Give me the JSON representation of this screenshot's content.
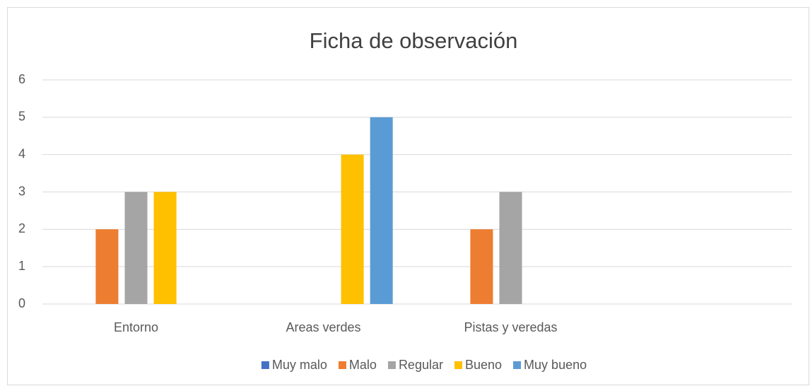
{
  "chart_data": {
    "type": "bar",
    "title": "Ficha de observación",
    "categories": [
      "Entorno",
      "Areas verdes",
      "Pistas y veredas",
      null
    ],
    "series": [
      {
        "name": "Muy malo",
        "color": "#4472c4",
        "values": [
          null,
          null,
          null,
          null
        ]
      },
      {
        "name": "Malo",
        "color": "#ed7d31",
        "values": [
          2,
          null,
          2,
          null
        ]
      },
      {
        "name": "Regular",
        "color": "#a5a5a5",
        "values": [
          3,
          null,
          3,
          null
        ]
      },
      {
        "name": "Bueno",
        "color": "#ffc000",
        "values": [
          3,
          4,
          null,
          null
        ]
      },
      {
        "name": "Muy bueno",
        "color": "#5b9bd5",
        "values": [
          null,
          5,
          null,
          null
        ]
      }
    ],
    "ylim": [
      0,
      6
    ],
    "yticks": [
      0,
      1,
      2,
      3,
      4,
      5,
      6
    ],
    "grid": true,
    "legend": "bottom"
  }
}
